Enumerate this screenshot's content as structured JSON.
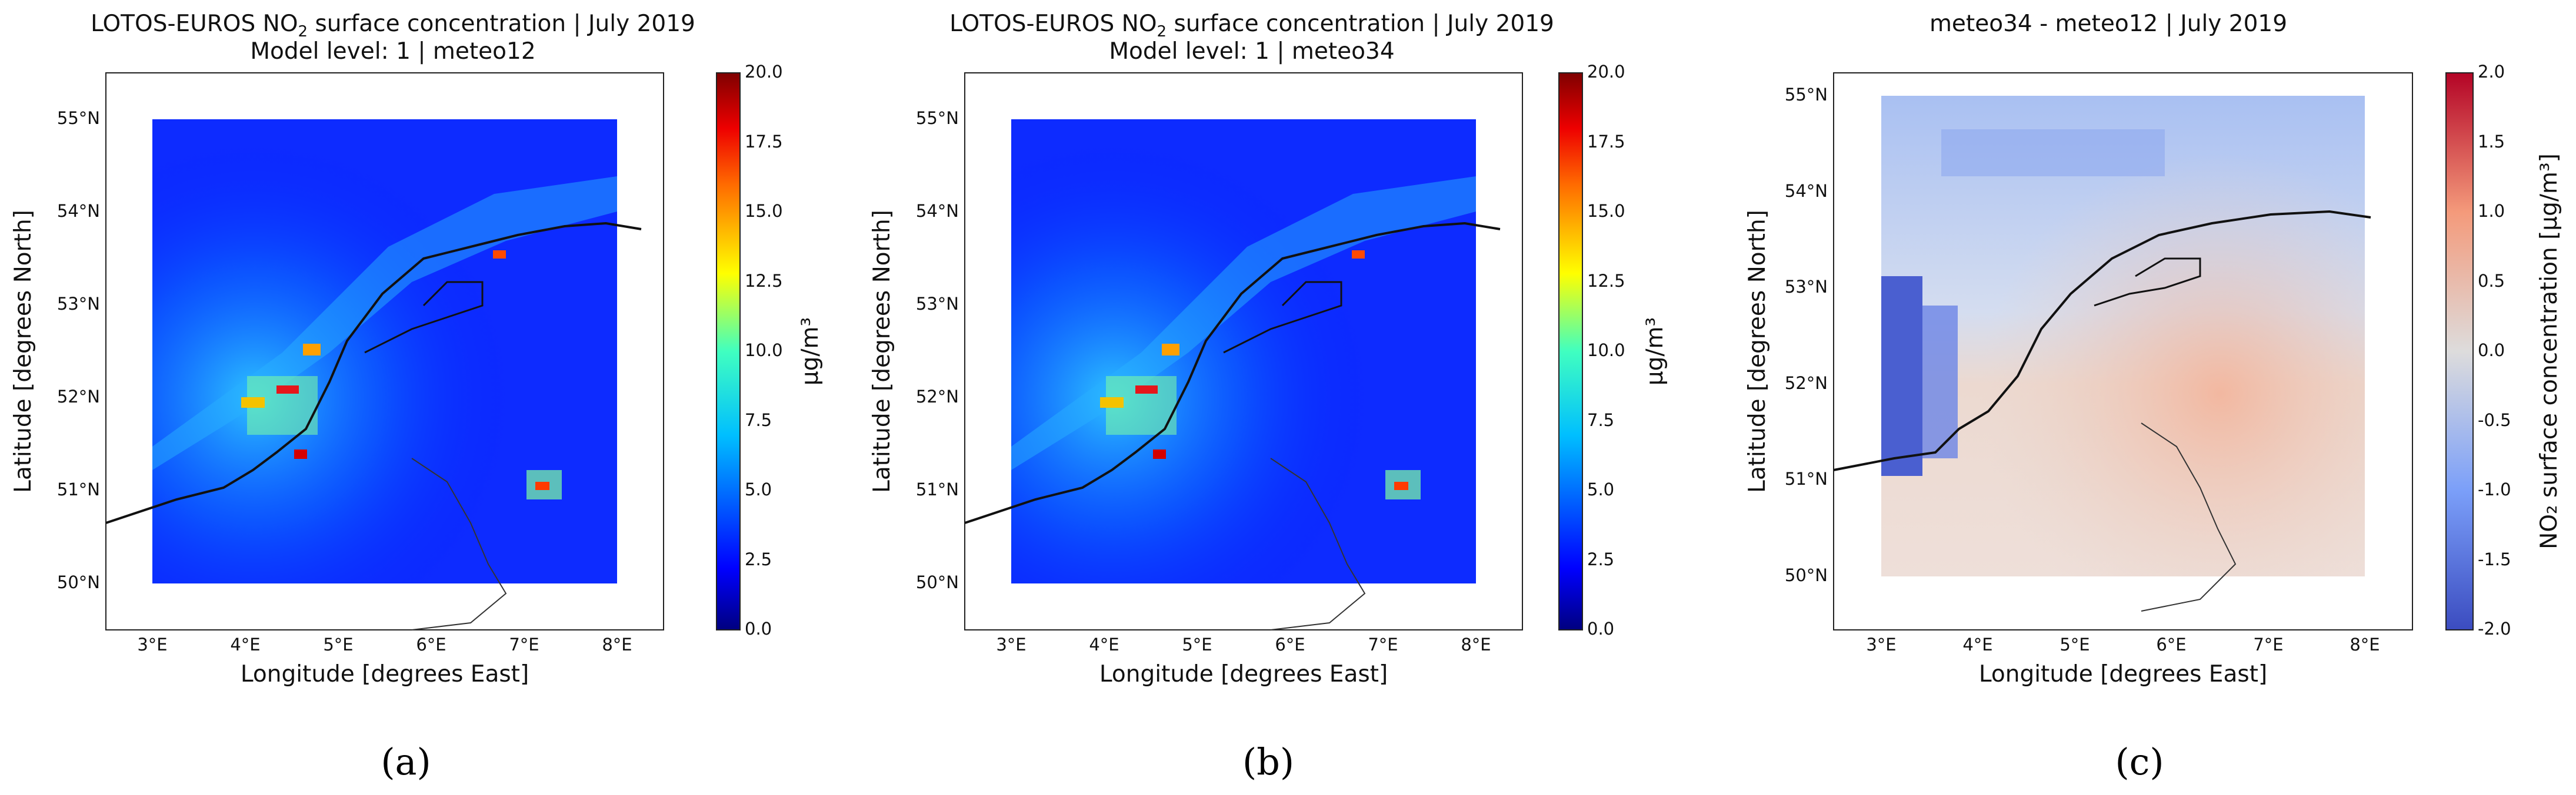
{
  "chart_data": [
    {
      "type": "heatmap",
      "id": "a",
      "title_prefix": "LOTOS-EUROS NO",
      "title_sub": "2",
      "title_suffix": " surface concentration | July 2019",
      "title_line2": "Model level: 1 | meteo12",
      "xlabel": "Longitude [degrees East]",
      "ylabel": "Latitude [degrees North]",
      "xlim": [
        2.5,
        8.5
      ],
      "ylim": [
        49.5,
        55.5
      ],
      "data_extent": {
        "lon": [
          3,
          8
        ],
        "lat": [
          50,
          55
        ]
      },
      "xticks": [
        "3°E",
        "4°E",
        "5°E",
        "6°E",
        "7°E",
        "8°E"
      ],
      "yticks": [
        "50°N",
        "51°N",
        "52°N",
        "53°N",
        "54°N",
        "55°N"
      ],
      "colorbar": {
        "label": "μg/m³",
        "colormap": "jet",
        "ticks": [
          "0.0",
          "2.5",
          "5.0",
          "7.5",
          "10.0",
          "12.5",
          "15.0",
          "17.5",
          "20.0"
        ],
        "range": [
          0,
          20
        ]
      },
      "caption": "(a)"
    },
    {
      "type": "heatmap",
      "id": "b",
      "title_prefix": "LOTOS-EUROS NO",
      "title_sub": "2",
      "title_suffix": " surface concentration | July 2019",
      "title_line2": "Model level: 1 | meteo34",
      "xlabel": "Longitude [degrees East]",
      "ylabel": "Latitude [degrees North]",
      "xlim": [
        2.5,
        8.5
      ],
      "ylim": [
        49.5,
        55.5
      ],
      "data_extent": {
        "lon": [
          3,
          8
        ],
        "lat": [
          50,
          55
        ]
      },
      "xticks": [
        "3°E",
        "4°E",
        "5°E",
        "6°E",
        "7°E",
        "8°E"
      ],
      "yticks": [
        "50°N",
        "51°N",
        "52°N",
        "53°N",
        "54°N",
        "55°N"
      ],
      "colorbar": {
        "label": "μg/m³",
        "colormap": "jet",
        "ticks": [
          "0.0",
          "2.5",
          "5.0",
          "7.5",
          "10.0",
          "12.5",
          "15.0",
          "17.5",
          "20.0"
        ],
        "range": [
          0,
          20
        ]
      },
      "caption": "(b)"
    },
    {
      "type": "heatmap",
      "id": "c",
      "title": "meteo34 - meteo12 | July 2019",
      "xlabel": "Longitude [degrees East]",
      "ylabel": "Latitude [degrees North]",
      "xlim": [
        2.5,
        8.5
      ],
      "ylim": [
        49.5,
        55.5
      ],
      "data_extent": {
        "lon": [
          3,
          8
        ],
        "lat": [
          50,
          55
        ]
      },
      "xticks": [
        "3°E",
        "4°E",
        "5°E",
        "6°E",
        "7°E",
        "8°E"
      ],
      "yticks": [
        "50°N",
        "51°N",
        "52°N",
        "53°N",
        "54°N",
        "55°N"
      ],
      "colorbar": {
        "label": "NO₂ surface concentration [μg/m³]",
        "colormap": "coolwarm",
        "ticks": [
          "-2.0",
          "-1.5",
          "-1.0",
          "-0.5",
          "0.0",
          "0.5",
          "1.0",
          "1.5",
          "2.0"
        ],
        "range": [
          -2,
          2
        ]
      },
      "caption": "(c)"
    }
  ],
  "colors": {
    "jet": [
      "#00007f",
      "#0000ff",
      "#007fff",
      "#00ffff",
      "#7fff7f",
      "#ffff00",
      "#ff7f00",
      "#ff0000",
      "#7f0000"
    ],
    "coolwarm": [
      "#3b4cc0",
      "#6788ee",
      "#9abbff",
      "#c9d7f0",
      "#edd1c2",
      "#f7a889",
      "#e26952",
      "#b40426"
    ]
  }
}
